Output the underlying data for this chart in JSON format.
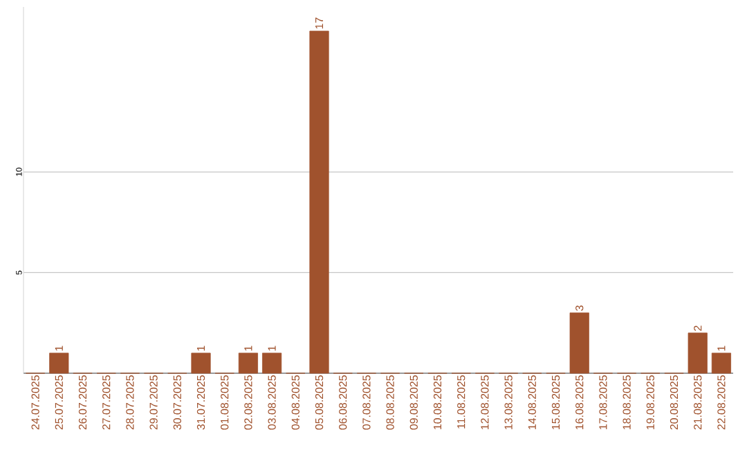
{
  "chart_data": {
    "type": "bar",
    "categories": [
      "24.07.2025",
      "25.07.2025",
      "26.07.2025",
      "27.07.2025",
      "28.07.2025",
      "29.07.2025",
      "30.07.2025",
      "31.07.2025",
      "01.08.2025",
      "02.08.2025",
      "03.08.2025",
      "04.08.2025",
      "05.08.2025",
      "06.08.2025",
      "07.08.2025",
      "08.08.2025",
      "09.08.2025",
      "10.08.2025",
      "11.08.2025",
      "12.08.2025",
      "13.08.2025",
      "14.08.2025",
      "15.08.2025",
      "16.08.2025",
      "17.08.2025",
      "18.08.2025",
      "19.08.2025",
      "20.08.2025",
      "21.08.2025",
      "22.08.2025"
    ],
    "values": [
      0,
      1,
      0,
      0,
      0,
      0,
      0,
      1,
      0,
      1,
      1,
      0,
      17,
      0,
      0,
      0,
      0,
      0,
      0,
      0,
      0,
      0,
      0,
      3,
      0,
      0,
      0,
      0,
      2,
      1
    ],
    "value_labels": [
      null,
      "1",
      null,
      null,
      null,
      null,
      null,
      "1",
      null,
      "1",
      "1",
      null,
      "17",
      null,
      null,
      null,
      null,
      null,
      null,
      null,
      null,
      null,
      null,
      "3",
      null,
      null,
      null,
      null,
      "2",
      "1"
    ],
    "color": "#a0522d",
    "ylim": [
      0,
      18.2
    ],
    "yticks": [
      5,
      10
    ],
    "grid": "y"
  }
}
